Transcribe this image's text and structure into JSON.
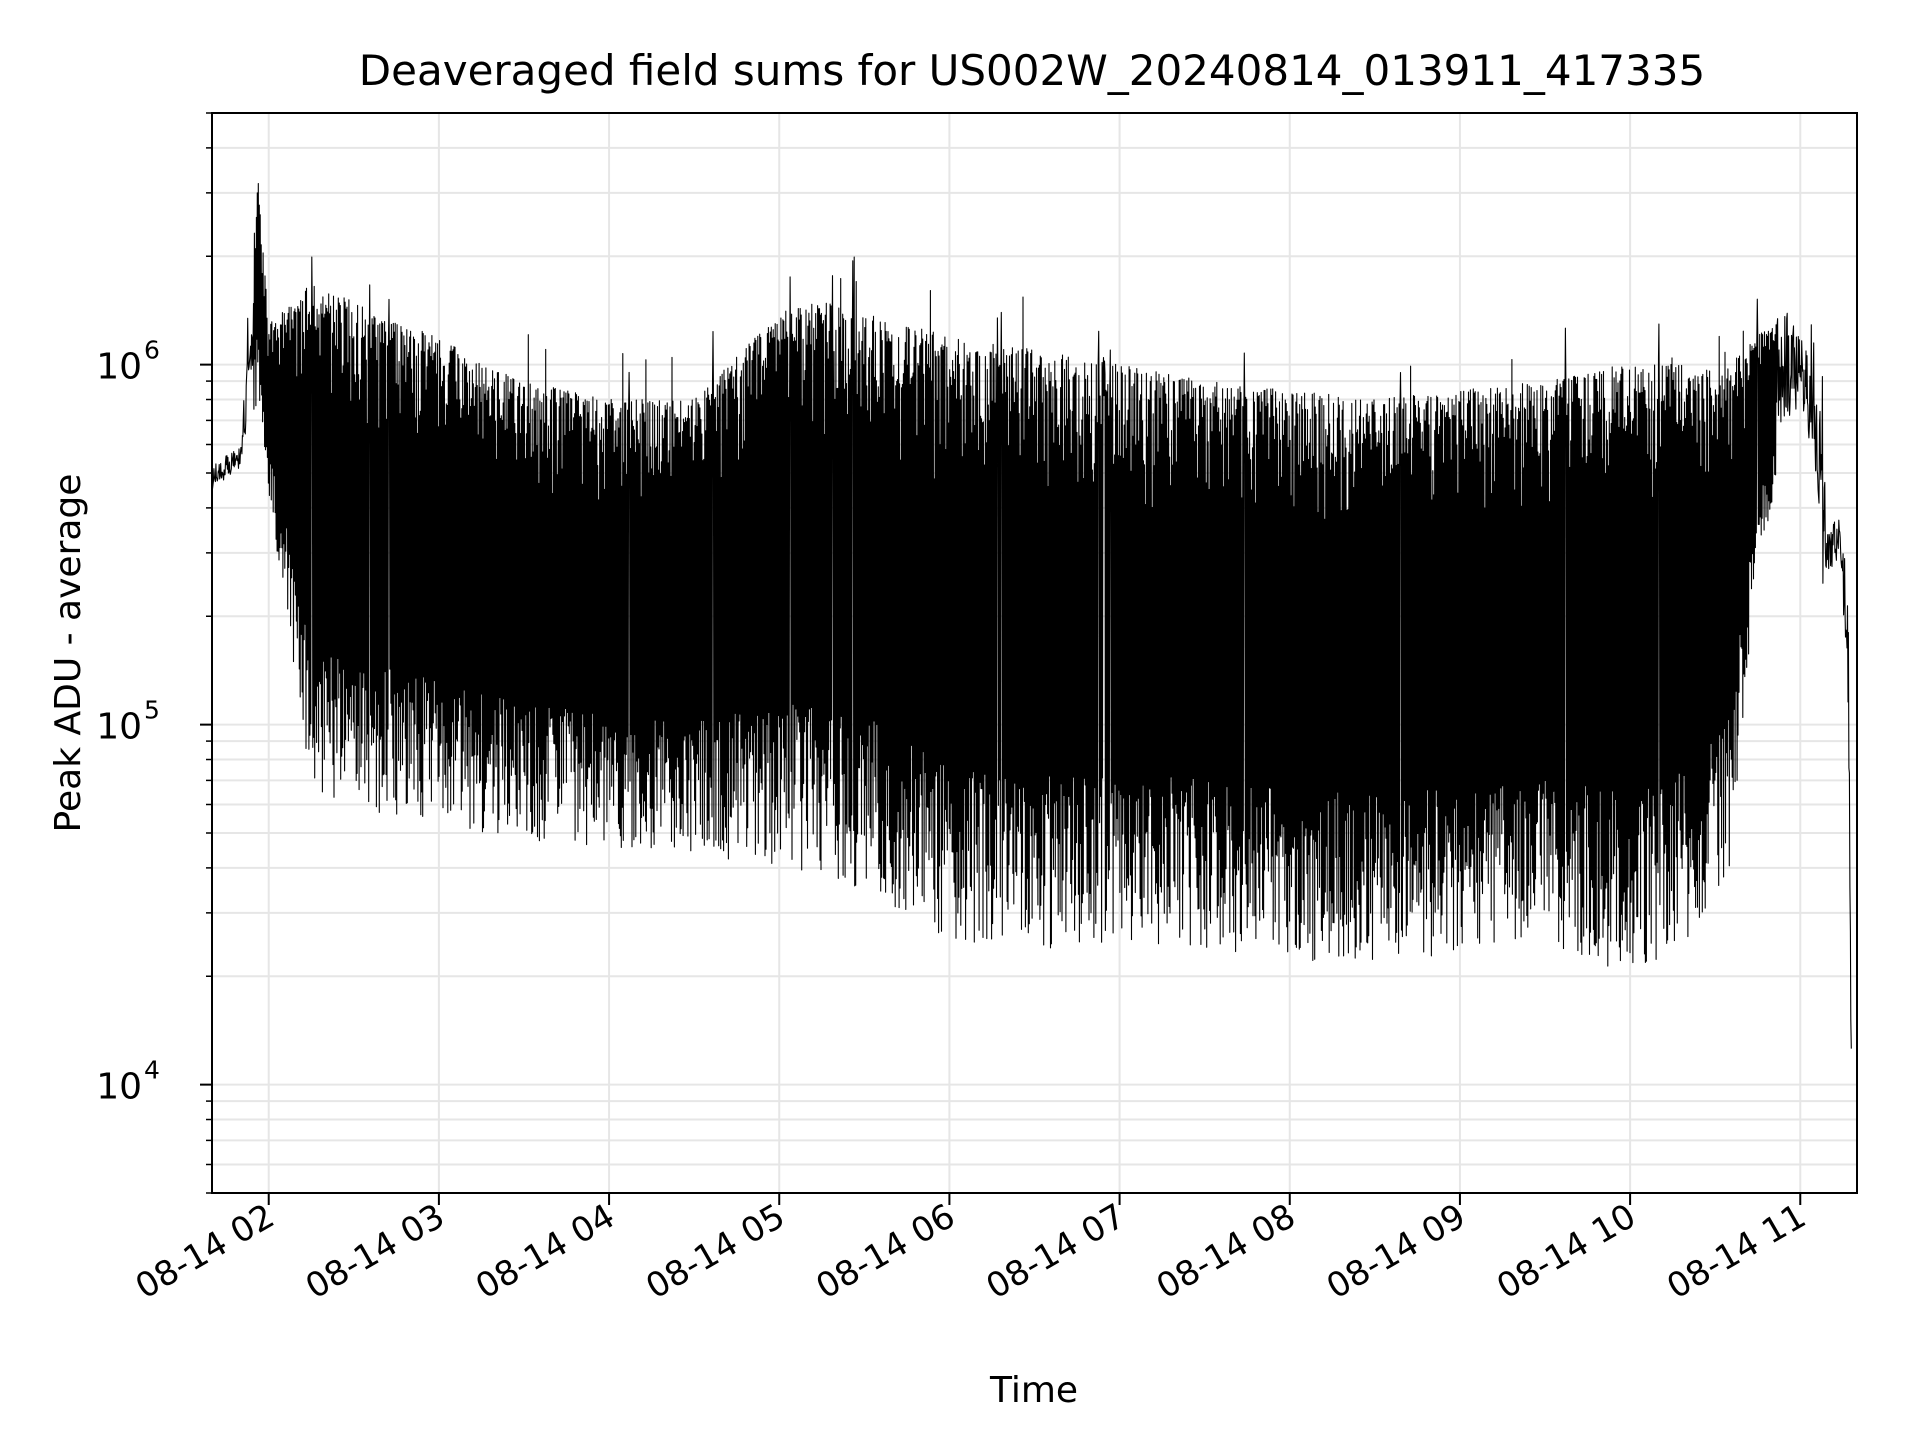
{
  "chart_data": {
    "type": "line",
    "title": "Deaveraged field sums for US002W_20240814_013911_417335",
    "xlabel": "Time",
    "ylabel": "Peak ADU - average",
    "yscale": "log",
    "x_range": [
      "2024-08-14 01:40",
      "2024-08-14 11:20"
    ],
    "ylim": [
      5000,
      5000000
    ],
    "grid": true,
    "legend": "none",
    "line_color": "#000000",
    "grid_color": "#e6e6e6",
    "x_ticks": [
      {
        "t": "2024-08-14 02:00",
        "label": "08-14 02"
      },
      {
        "t": "2024-08-14 03:00",
        "label": "08-14 03"
      },
      {
        "t": "2024-08-14 04:00",
        "label": "08-14 04"
      },
      {
        "t": "2024-08-14 05:00",
        "label": "08-14 05"
      },
      {
        "t": "2024-08-14 06:00",
        "label": "08-14 06"
      },
      {
        "t": "2024-08-14 07:00",
        "label": "08-14 07"
      },
      {
        "t": "2024-08-14 08:00",
        "label": "08-14 08"
      },
      {
        "t": "2024-08-14 09:00",
        "label": "08-14 09"
      },
      {
        "t": "2024-08-14 10:00",
        "label": "08-14 10"
      },
      {
        "t": "2024-08-14 11:00",
        "label": "08-14 11"
      }
    ],
    "y_ticks": [
      {
        "value": 10000,
        "base": "10",
        "exp": "4"
      },
      {
        "value": 100000,
        "base": "10",
        "exp": "5"
      },
      {
        "value": 1000000,
        "base": "10",
        "exp": "6"
      }
    ],
    "series": [
      {
        "x": [
          "2024-08-14 01:40",
          "2024-08-14 01:45",
          "2024-08-14 01:50",
          "2024-08-14 01:53",
          "2024-08-14 01:56",
          "2024-08-14 02:00",
          "2024-08-14 02:05",
          "2024-08-14 02:10",
          "2024-08-14 02:15",
          "2024-08-14 02:20",
          "2024-08-14 02:30",
          "2024-08-14 02:45",
          "2024-08-14 03:00",
          "2024-08-14 03:15",
          "2024-08-14 03:30",
          "2024-08-14 04:00",
          "2024-08-14 04:30",
          "2024-08-14 05:00",
          "2024-08-14 05:15",
          "2024-08-14 05:30",
          "2024-08-14 06:00",
          "2024-08-14 06:30",
          "2024-08-14 07:00",
          "2024-08-14 07:30",
          "2024-08-14 08:00",
          "2024-08-14 08:30",
          "2024-08-14 09:00",
          "2024-08-14 09:30",
          "2024-08-14 10:00",
          "2024-08-14 10:20",
          "2024-08-14 10:35",
          "2024-08-14 10:45",
          "2024-08-14 10:55",
          "2024-08-14 11:00",
          "2024-08-14 11:05",
          "2024-08-14 11:08",
          "2024-08-14 11:10",
          "2024-08-14 11:13",
          "2024-08-14 11:15",
          "2024-08-14 11:17",
          "2024-08-14 11:18"
        ],
        "high": [
          520000,
          560000,
          600000,
          1200000,
          3500000,
          1300000,
          1400000,
          1500000,
          1700000,
          1600000,
          1500000,
          1300000,
          1200000,
          1000000,
          900000,
          800000,
          800000,
          1400000,
          1500000,
          1400000,
          1200000,
          1100000,
          1000000,
          900000,
          850000,
          800000,
          850000,
          900000,
          1000000,
          1000000,
          1000000,
          1200000,
          1400000,
          1300000,
          900000,
          700000,
          350000,
          380000,
          350000,
          200000,
          15000
        ],
        "low": [
          420000,
          450000,
          480000,
          600000,
          800000,
          400000,
          250000,
          120000,
          70000,
          60000,
          60000,
          55000,
          55000,
          50000,
          48000,
          45000,
          42000,
          40000,
          38000,
          35000,
          25000,
          23000,
          25000,
          24000,
          22000,
          22000,
          23000,
          24000,
          20000,
          25000,
          40000,
          300000,
          500000,
          600000,
          400000,
          220000,
          200000,
          250000,
          180000,
          80000,
          8000
        ]
      }
    ]
  }
}
